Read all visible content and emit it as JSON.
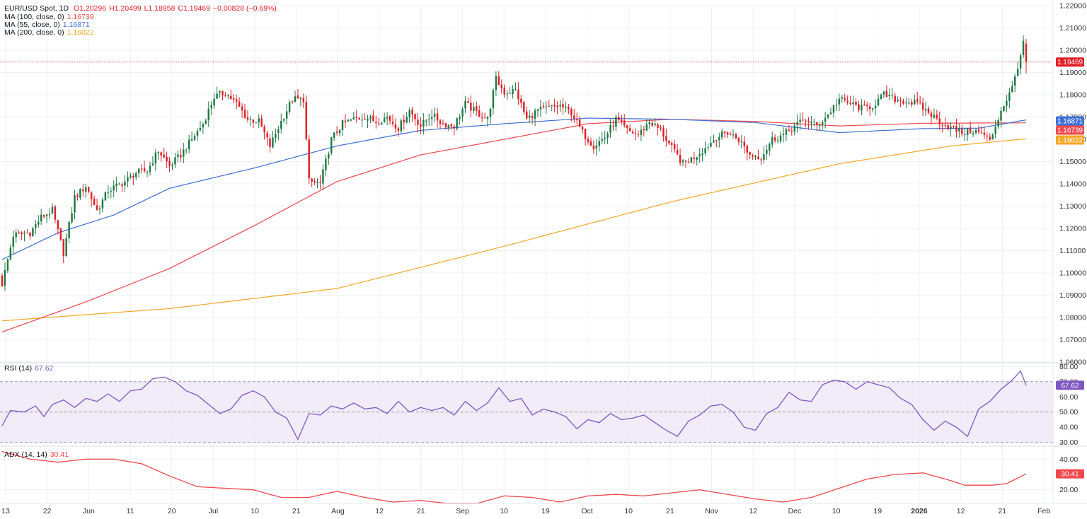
{
  "colors": {
    "up": "#1f7a46",
    "down": "#e01e26",
    "ma100": "#f0484c",
    "ma55": "#3d6fd6",
    "ma200": "#f5a623",
    "rsi": "#7e57c2",
    "adx": "#f0484c",
    "grid": "#eef0f3",
    "axis_text": "#333333",
    "rsi_fill": "#ede7f6",
    "price_line": "#e01e26"
  },
  "legend": {
    "main_title": "EUR/USD Spot, 1D",
    "open": "O1.20296",
    "high": "H1.20499",
    "low": "L1.18958",
    "close": "C1.19469",
    "change": "−0.00828 (−0.69%)",
    "ma100_label": "MA (100, close, 0)",
    "ma100_value": "1.16739",
    "ma55_label": "MA (55, close, 0)",
    "ma55_value": "1.16871",
    "ma200_label": "MA (200, close, 0)",
    "ma200_value": "1.16022",
    "rsi_label": "RSI (14)",
    "rsi_value": "67.62",
    "adx_label": "ADX (14, 14)",
    "adx_value": "30.41"
  },
  "chart_data": [
    {
      "type": "candlestick",
      "title": "EUR/USD Spot, 1D",
      "ylim": [
        1.06,
        1.22
      ],
      "price_ticks": [
        "1.22000",
        "1.21000",
        "1.20000",
        "1.19000",
        "1.18000",
        "1.17000",
        "1.16000",
        "1.15000",
        "1.14000",
        "1.13000",
        "1.12000",
        "1.11000",
        "1.10000",
        "1.09000",
        "1.08000",
        "1.07000",
        "1.06000"
      ],
      "x_ticks": [
        "13",
        "22",
        "Jun",
        "11",
        "20",
        "Jul",
        "10",
        "21",
        "Aug",
        "12",
        "21",
        "Sep",
        "10",
        "19",
        "Oct",
        "10",
        "21",
        "Nov",
        "12",
        "Dec",
        "10",
        "19",
        "2026",
        "12",
        "21",
        "Feb"
      ],
      "x_ticks_bold": [
        "2026"
      ],
      "last_price": {
        "value": 1.19469,
        "label": "1.19469"
      },
      "ma_badges": [
        {
          "name": "MA 55",
          "value": 1.16871,
          "label": "1.16871"
        },
        {
          "name": "MA 100",
          "value": 1.16739,
          "label": "1.16739"
        },
        {
          "name": "MA 200",
          "value": 1.16022,
          "label": "1.16022"
        }
      ],
      "anchors_close": [
        [
          0,
          1.095
        ],
        [
          4,
          1.117
        ],
        [
          10,
          1.118
        ],
        [
          14,
          1.125
        ],
        [
          18,
          1.128
        ],
        [
          22,
          1.109
        ],
        [
          26,
          1.134
        ],
        [
          30,
          1.139
        ],
        [
          34,
          1.128
        ],
        [
          38,
          1.137
        ],
        [
          44,
          1.141
        ],
        [
          48,
          1.145
        ],
        [
          52,
          1.146
        ],
        [
          56,
          1.155
        ],
        [
          60,
          1.148
        ],
        [
          64,
          1.153
        ],
        [
          68,
          1.16
        ],
        [
          72,
          1.167
        ],
        [
          76,
          1.179
        ],
        [
          80,
          1.181
        ],
        [
          84,
          1.176
        ],
        [
          88,
          1.169
        ],
        [
          92,
          1.168
        ],
        [
          96,
          1.157
        ],
        [
          100,
          1.168
        ],
        [
          104,
          1.178
        ],
        [
          108,
          1.178
        ],
        [
          110,
          1.141
        ],
        [
          114,
          1.14
        ],
        [
          118,
          1.16
        ],
        [
          122,
          1.167
        ],
        [
          126,
          1.169
        ],
        [
          130,
          1.17
        ],
        [
          134,
          1.168
        ],
        [
          138,
          1.17
        ],
        [
          142,
          1.165
        ],
        [
          146,
          1.173
        ],
        [
          150,
          1.166
        ],
        [
          154,
          1.171
        ],
        [
          158,
          1.167
        ],
        [
          162,
          1.166
        ],
        [
          166,
          1.176
        ],
        [
          170,
          1.172
        ],
        [
          174,
          1.169
        ],
        [
          177,
          1.187
        ],
        [
          180,
          1.181
        ],
        [
          184,
          1.182
        ],
        [
          188,
          1.169
        ],
        [
          192,
          1.173
        ],
        [
          196,
          1.174
        ],
        [
          200,
          1.175
        ],
        [
          204,
          1.172
        ],
        [
          208,
          1.163
        ],
        [
          212,
          1.157
        ],
        [
          216,
          1.161
        ],
        [
          220,
          1.169
        ],
        [
          224,
          1.164
        ],
        [
          228,
          1.162
        ],
        [
          232,
          1.168
        ],
        [
          236,
          1.164
        ],
        [
          240,
          1.156
        ],
        [
          244,
          1.149
        ],
        [
          248,
          1.152
        ],
        [
          252,
          1.156
        ],
        [
          256,
          1.161
        ],
        [
          260,
          1.163
        ],
        [
          264,
          1.16
        ],
        [
          268,
          1.153
        ],
        [
          272,
          1.152
        ],
        [
          276,
          1.16
        ],
        [
          280,
          1.162
        ],
        [
          284,
          1.166
        ],
        [
          288,
          1.169
        ],
        [
          292,
          1.166
        ],
        [
          296,
          1.171
        ],
        [
          300,
          1.178
        ],
        [
          304,
          1.176
        ],
        [
          308,
          1.174
        ],
        [
          312,
          1.175
        ],
        [
          316,
          1.18
        ],
        [
          320,
          1.178
        ],
        [
          324,
          1.177
        ],
        [
          328,
          1.176
        ],
        [
          332,
          1.172
        ],
        [
          336,
          1.168
        ],
        [
          340,
          1.165
        ],
        [
          344,
          1.163
        ],
        [
          348,
          1.164
        ],
        [
          352,
          1.162
        ],
        [
          354,
          1.159
        ],
        [
          358,
          1.173
        ],
        [
          362,
          1.183
        ],
        [
          365,
          1.198
        ],
        [
          366,
          1.2027
        ],
        [
          367,
          1.19469
        ]
      ],
      "ma100_points": [
        [
          0,
          1.0735
        ],
        [
          30,
          1.087
        ],
        [
          60,
          1.102
        ],
        [
          90,
          1.121
        ],
        [
          120,
          1.141
        ],
        [
          150,
          1.153
        ],
        [
          180,
          1.16
        ],
        [
          210,
          1.167
        ],
        [
          240,
          1.169
        ],
        [
          270,
          1.168
        ],
        [
          300,
          1.166
        ],
        [
          330,
          1.1672
        ],
        [
          367,
          1.16739
        ]
      ],
      "ma55_points": [
        [
          0,
          1.106
        ],
        [
          20,
          1.118
        ],
        [
          40,
          1.126
        ],
        [
          60,
          1.138
        ],
        [
          90,
          1.147
        ],
        [
          120,
          1.157
        ],
        [
          150,
          1.164
        ],
        [
          180,
          1.167
        ],
        [
          210,
          1.1695
        ],
        [
          240,
          1.169
        ],
        [
          270,
          1.1675
        ],
        [
          300,
          1.163
        ],
        [
          330,
          1.1648
        ],
        [
          350,
          1.165
        ],
        [
          367,
          1.16871
        ]
      ],
      "ma200_points": [
        [
          0,
          1.0785
        ],
        [
          60,
          1.084
        ],
        [
          120,
          1.093
        ],
        [
          180,
          1.112
        ],
        [
          240,
          1.132
        ],
        [
          300,
          1.149
        ],
        [
          340,
          1.157
        ],
        [
          367,
          1.16022
        ]
      ]
    },
    {
      "type": "line",
      "title": "RSI (14)",
      "ylim": [
        28,
        82
      ],
      "ticks": [
        "80.00",
        "70.00",
        "60.00",
        "50.00",
        "40.00",
        "30.00"
      ],
      "bands": {
        "upper": 70,
        "middle": 50,
        "lower": 30
      },
      "current": {
        "value": 67.62,
        "label": "67.62"
      },
      "points": [
        [
          0,
          41
        ],
        [
          3,
          51
        ],
        [
          8,
          50
        ],
        [
          12,
          54
        ],
        [
          15,
          47
        ],
        [
          18,
          55
        ],
        [
          22,
          58
        ],
        [
          26,
          53
        ],
        [
          30,
          59
        ],
        [
          34,
          57
        ],
        [
          38,
          62
        ],
        [
          42,
          57
        ],
        [
          46,
          64
        ],
        [
          50,
          65
        ],
        [
          54,
          72
        ],
        [
          58,
          73
        ],
        [
          62,
          70
        ],
        [
          66,
          64
        ],
        [
          70,
          61
        ],
        [
          74,
          55
        ],
        [
          78,
          49
        ],
        [
          82,
          52
        ],
        [
          86,
          61
        ],
        [
          90,
          64
        ],
        [
          94,
          60
        ],
        [
          98,
          50
        ],
        [
          102,
          46
        ],
        [
          106,
          32
        ],
        [
          110,
          49
        ],
        [
          114,
          48
        ],
        [
          118,
          54
        ],
        [
          122,
          52
        ],
        [
          126,
          56
        ],
        [
          130,
          52
        ],
        [
          134,
          53
        ],
        [
          138,
          49
        ],
        [
          142,
          57
        ],
        [
          146,
          50
        ],
        [
          150,
          53
        ],
        [
          154,
          51
        ],
        [
          158,
          53
        ],
        [
          162,
          48
        ],
        [
          166,
          57
        ],
        [
          170,
          51
        ],
        [
          174,
          56
        ],
        [
          178,
          66
        ],
        [
          182,
          57
        ],
        [
          186,
          59
        ],
        [
          190,
          48
        ],
        [
          194,
          52
        ],
        [
          198,
          50
        ],
        [
          202,
          47
        ],
        [
          206,
          39
        ],
        [
          210,
          45
        ],
        [
          214,
          43
        ],
        [
          218,
          49
        ],
        [
          222,
          45
        ],
        [
          226,
          46
        ],
        [
          230,
          48
        ],
        [
          234,
          43
        ],
        [
          238,
          38
        ],
        [
          242,
          34
        ],
        [
          246,
          44
        ],
        [
          250,
          48
        ],
        [
          254,
          54
        ],
        [
          258,
          55
        ],
        [
          262,
          50
        ],
        [
          266,
          40
        ],
        [
          270,
          38
        ],
        [
          274,
          49
        ],
        [
          278,
          53
        ],
        [
          282,
          63
        ],
        [
          286,
          58
        ],
        [
          290,
          57
        ],
        [
          294,
          68
        ],
        [
          298,
          71
        ],
        [
          302,
          70
        ],
        [
          306,
          65
        ],
        [
          310,
          70
        ],
        [
          314,
          68
        ],
        [
          318,
          66
        ],
        [
          322,
          59
        ],
        [
          326,
          55
        ],
        [
          330,
          45
        ],
        [
          334,
          38
        ],
        [
          338,
          44
        ],
        [
          342,
          40
        ],
        [
          346,
          34
        ],
        [
          350,
          52
        ],
        [
          354,
          57
        ],
        [
          358,
          65
        ],
        [
          362,
          71
        ],
        [
          365,
          77
        ],
        [
          367,
          67.62
        ]
      ]
    },
    {
      "type": "line",
      "title": "ADX (14, 14)",
      "ylim": [
        12,
        48
      ],
      "ticks": [
        "40.00",
        "20.00"
      ],
      "current": {
        "value": 30.41,
        "label": "30.41"
      },
      "points": [
        [
          0,
          45
        ],
        [
          10,
          40
        ],
        [
          20,
          38
        ],
        [
          30,
          40
        ],
        [
          40,
          40
        ],
        [
          50,
          37
        ],
        [
          60,
          29
        ],
        [
          70,
          22
        ],
        [
          80,
          21
        ],
        [
          90,
          20
        ],
        [
          100,
          15
        ],
        [
          110,
          15
        ],
        [
          120,
          19
        ],
        [
          130,
          15
        ],
        [
          140,
          12
        ],
        [
          150,
          13
        ],
        [
          160,
          11
        ],
        [
          170,
          11
        ],
        [
          180,
          16
        ],
        [
          190,
          15
        ],
        [
          200,
          12
        ],
        [
          210,
          16
        ],
        [
          220,
          17
        ],
        [
          230,
          16
        ],
        [
          240,
          18
        ],
        [
          250,
          20
        ],
        [
          260,
          17
        ],
        [
          270,
          14
        ],
        [
          280,
          12
        ],
        [
          290,
          15
        ],
        [
          300,
          21
        ],
        [
          310,
          27
        ],
        [
          320,
          30
        ],
        [
          330,
          31
        ],
        [
          340,
          26
        ],
        [
          345,
          23
        ],
        [
          355,
          23
        ],
        [
          360,
          24
        ],
        [
          367,
          30.41
        ]
      ]
    }
  ]
}
